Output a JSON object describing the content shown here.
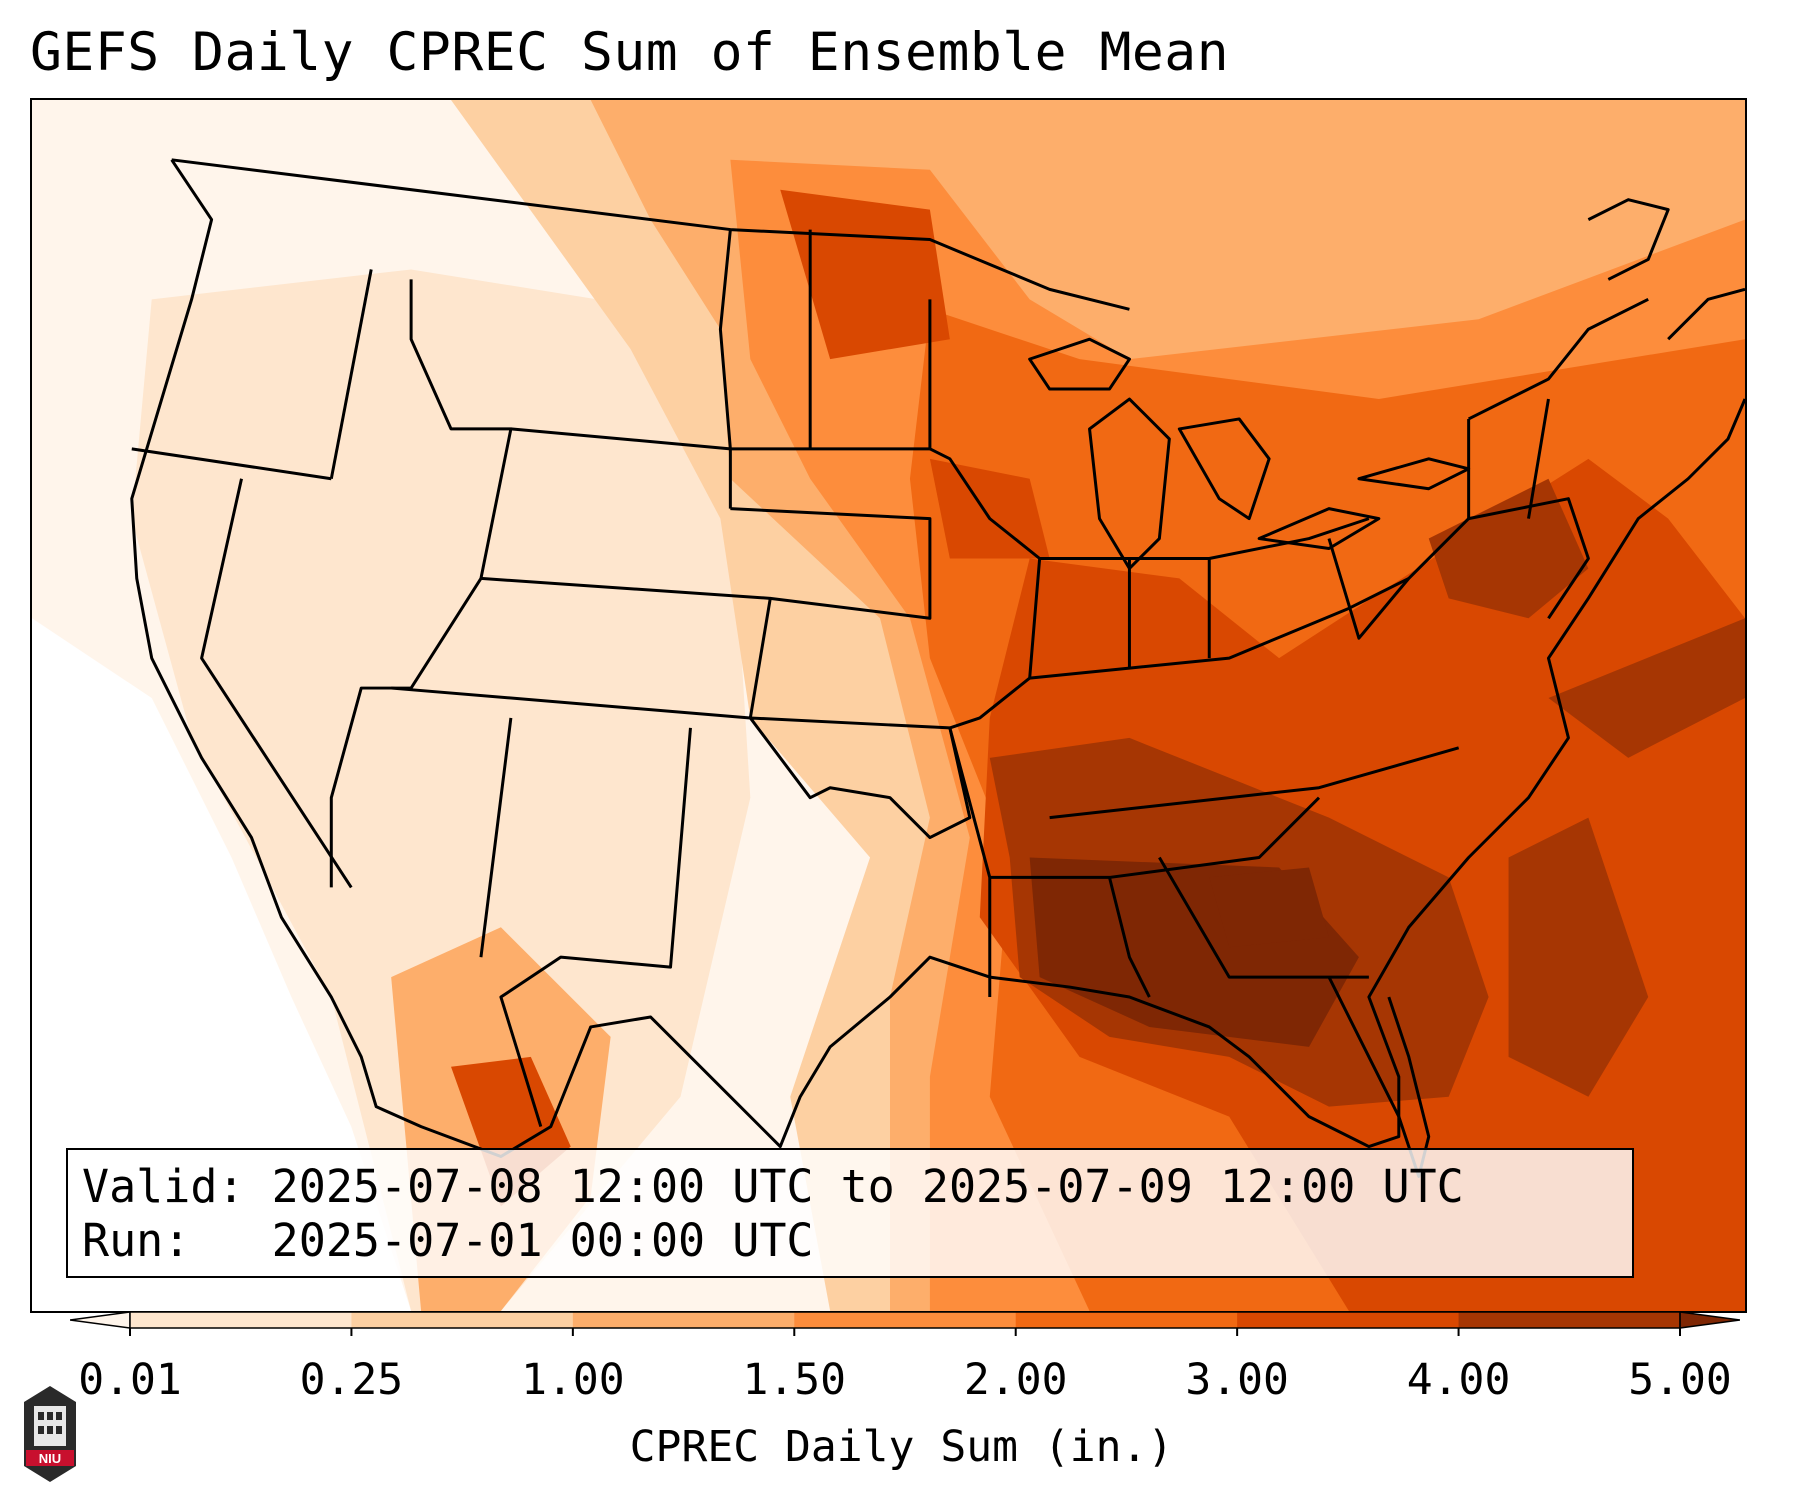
{
  "title": "GEFS Daily CPREC Sum of Ensemble Mean",
  "info": {
    "valid_label": "Valid:",
    "valid_text": "2025-07-08 12:00 UTC to 2025-07-09 12:00 UTC",
    "run_label": "Run:",
    "run_text": "2025-07-01 00:00 UTC"
  },
  "colorbar": {
    "label": "CPREC Daily Sum (in.)",
    "ticks": [
      "0.01",
      "0.25",
      "1.00",
      "1.50",
      "2.00",
      "3.00",
      "4.00",
      "5.00"
    ],
    "colors": [
      "#fff5eb",
      "#fee6ce",
      "#fdd0a2",
      "#fdae6b",
      "#fd8d3c",
      "#f16913",
      "#d94801",
      "#a63603",
      "#7f2704"
    ],
    "extend": "both"
  },
  "map": {
    "region": "Contiguous United States",
    "field": "CPREC daily sum",
    "palette": "Oranges"
  },
  "logo": {
    "text": "NIU",
    "icon": "niu-tower-logo"
  }
}
